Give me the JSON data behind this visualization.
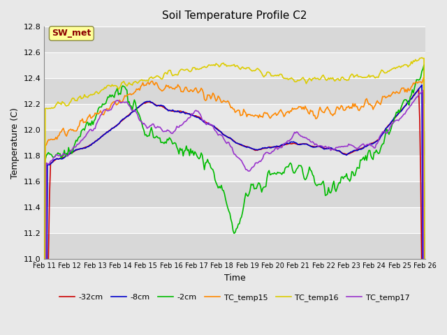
{
  "title": "Soil Temperature Profile C2",
  "xlabel": "Time",
  "ylabel": "Temperature (C)",
  "ylim": [
    11.0,
    12.8
  ],
  "yticks": [
    11.0,
    11.2,
    11.4,
    11.6,
    11.8,
    12.0,
    12.2,
    12.4,
    12.6,
    12.8
  ],
  "x_labels": [
    "Feb 11",
    "Feb 12",
    "Feb 13",
    "Feb 14",
    "Feb 15",
    "Feb 16",
    "Feb 17",
    "Feb 18",
    "Feb 19",
    "Feb 20",
    "Feb 21",
    "Feb 22",
    "Feb 23",
    "Feb 24",
    "Feb 25",
    "Feb 26"
  ],
  "annotation_text": "SW_met",
  "annotation_color": "#8B0000",
  "annotation_bg": "#FFFF99",
  "series": {
    "neg32cm": {
      "label": "-32cm",
      "color": "#CC0000",
      "linewidth": 1.2
    },
    "neg8cm": {
      "label": "-8cm",
      "color": "#0000CC",
      "linewidth": 1.2
    },
    "neg2cm": {
      "label": "-2cm",
      "color": "#00BB00",
      "linewidth": 1.2
    },
    "tc15": {
      "label": "TC_temp15",
      "color": "#FF8800",
      "linewidth": 1.2
    },
    "tc16": {
      "label": "TC_temp16",
      "color": "#DDCC00",
      "linewidth": 1.2
    },
    "tc17": {
      "label": "TC_temp17",
      "color": "#9933CC",
      "linewidth": 1.2
    }
  },
  "bg_color": "#E8E8E8",
  "plot_bg": "#F0F0F0",
  "figsize": [
    6.4,
    4.8
  ],
  "dpi": 100
}
